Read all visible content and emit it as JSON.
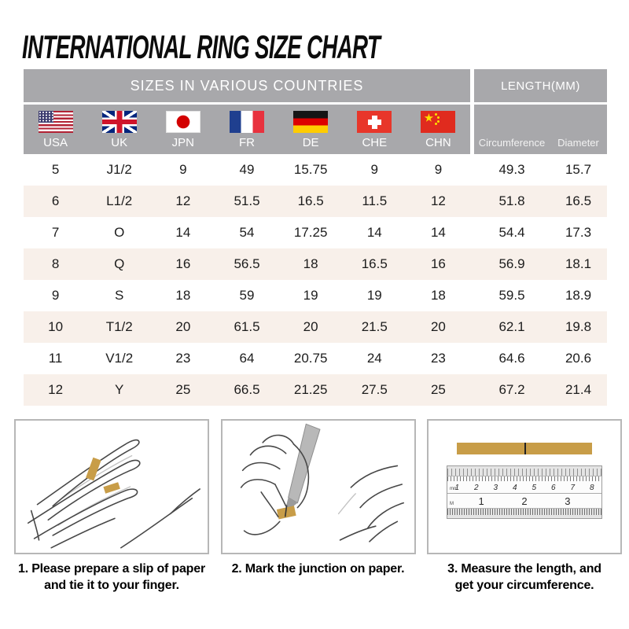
{
  "title": "INTERNATIONAL RING SIZE CHART",
  "table": {
    "group_left": "SIZES IN VARIOUS COUNTRIES",
    "group_right": "LENGTH(MM)",
    "country_columns": [
      {
        "label": "USA",
        "flag_icon": "usa-flag"
      },
      {
        "label": "UK",
        "flag_icon": "uk-flag"
      },
      {
        "label": "JPN",
        "flag_icon": "japan-flag"
      },
      {
        "label": "FR",
        "flag_icon": "france-flag"
      },
      {
        "label": "DE",
        "flag_icon": "germany-flag"
      },
      {
        "label": "CHE",
        "flag_icon": "switzerland-flag"
      },
      {
        "label": "CHN",
        "flag_icon": "china-flag"
      }
    ],
    "length_columns": [
      "Circumference",
      "Diameter"
    ]
  },
  "chart_data": {
    "type": "table",
    "title": "INTERNATIONAL RING SIZE CHART",
    "column_groups": [
      "SIZES IN VARIOUS COUNTRIES",
      "LENGTH(MM)"
    ],
    "columns": [
      "USA",
      "UK",
      "JPN",
      "FR",
      "DE",
      "CHE",
      "CHN",
      "Circumference",
      "Diameter"
    ],
    "rows": [
      [
        "5",
        "J1/2",
        "9",
        "49",
        "15.75",
        "9",
        "9",
        "49.3",
        "15.7"
      ],
      [
        "6",
        "L1/2",
        "12",
        "51.5",
        "16.5",
        "11.5",
        "12",
        "51.8",
        "16.5"
      ],
      [
        "7",
        "O",
        "14",
        "54",
        "17.25",
        "14",
        "14",
        "54.4",
        "17.3"
      ],
      [
        "8",
        "Q",
        "16",
        "56.5",
        "18",
        "16.5",
        "16",
        "56.9",
        "18.1"
      ],
      [
        "9",
        "S",
        "18",
        "59",
        "19",
        "19",
        "18",
        "59.5",
        "18.9"
      ],
      [
        "10",
        "T1/2",
        "20",
        "61.5",
        "20",
        "21.5",
        "20",
        "62.1",
        "19.8"
      ],
      [
        "11",
        "V1/2",
        "23",
        "64",
        "20.75",
        "24",
        "23",
        "64.6",
        "20.6"
      ],
      [
        "12",
        "Y",
        "25",
        "66.5",
        "21.25",
        "27.5",
        "25",
        "67.2",
        "21.4"
      ]
    ]
  },
  "steps": [
    {
      "caption": "1. Please prepare a slip of paper\nand tie it to your finger.",
      "illustration": "hand-with-paper-strip"
    },
    {
      "caption": "2. Mark the junction on paper.",
      "illustration": "mark-junction-with-pen"
    },
    {
      "caption": "3. Measure the length, and\nget your circumference.",
      "illustration": "strip-on-ruler"
    }
  ],
  "ruler": {
    "cm_numbers": [
      "1",
      "2",
      "3",
      "4",
      "5",
      "6",
      "7",
      "8"
    ],
    "inch_numbers": [
      "1",
      "2",
      "3"
    ],
    "cm_unit_label": "mm",
    "inch_unit_label": "M"
  },
  "colors": {
    "header_bg": "#a8a8ab",
    "row_alt_bg": "#f8f0ea",
    "paper_gold": "#c89d48"
  }
}
